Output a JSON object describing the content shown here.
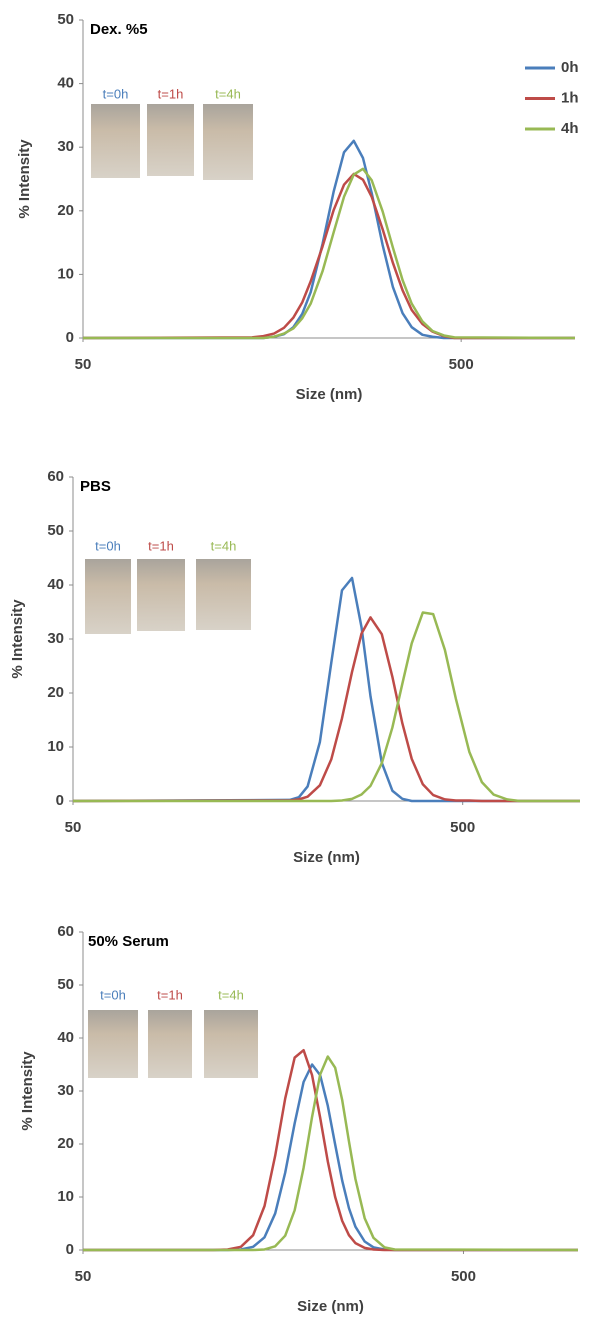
{
  "chart_data": [
    {
      "type": "line",
      "title": "Dex. %5",
      "xlabel": "Size (nm)",
      "ylabel": "% Intensity",
      "xscale": "log",
      "xlim": [
        50,
        1000
      ],
      "xticks": [
        50,
        500
      ],
      "ylim": [
        0,
        50
      ],
      "yticks": [
        0,
        10,
        20,
        30,
        40,
        50
      ],
      "legend": "upper right",
      "insets": [
        "t=0h",
        "t=1h",
        "t=4h"
      ],
      "x": [
        50,
        140,
        150,
        160,
        170,
        180,
        190,
        200,
        215,
        230,
        245,
        260,
        275,
        290,
        310,
        330,
        350,
        370,
        395,
        420,
        450,
        480,
        1000
      ],
      "series": [
        {
          "name": "0h",
          "color": "#4a7ebb",
          "values": [
            0,
            0,
            0,
            0.2,
            0.6,
            1.7,
            3.8,
            7.2,
            14.8,
            23,
            29.2,
            31,
            28.3,
            22.8,
            14.6,
            8,
            3.9,
            1.7,
            0.5,
            0.2,
            0,
            0,
            0
          ]
        },
        {
          "name": "1h",
          "color": "#be4b48",
          "values": [
            0,
            0.1,
            0.3,
            0.7,
            1.6,
            3.2,
            5.6,
            8.9,
            14.4,
            20.1,
            24.1,
            25.8,
            24.9,
            22.2,
            17.1,
            11.8,
            7.5,
            4.4,
            2.2,
            1,
            0.3,
            0,
            0
          ]
        },
        {
          "name": "4h",
          "color": "#98b954",
          "values": [
            0,
            0,
            0,
            0.2,
            0.7,
            1.5,
            3.1,
            5.4,
            10.5,
            16.6,
            22.2,
            25.7,
            26.6,
            24.8,
            19.9,
            14.2,
            9.1,
            5.4,
            2.6,
            1.1,
            0.4,
            0.1,
            0
          ]
        }
      ]
    },
    {
      "type": "line",
      "title": "PBS",
      "xlabel": "Size (nm)",
      "ylabel": "% Intensity",
      "xscale": "log",
      "xlim": [
        50,
        1000
      ],
      "xticks": [
        50,
        500
      ],
      "ylim": [
        0,
        60
      ],
      "yticks": [
        0,
        10,
        20,
        30,
        40,
        50,
        60
      ],
      "insets": [
        "t=0h",
        "t=1h",
        "t=4h"
      ],
      "x": [
        50,
        180,
        190,
        200,
        215,
        230,
        245,
        260,
        275,
        290,
        310,
        330,
        350,
        370,
        395,
        420,
        450,
        480,
        520,
        560,
        600,
        650,
        700,
        750,
        1000
      ],
      "series": [
        {
          "color": "#4a7ebb",
          "values": [
            0,
            0.2,
            0.7,
            2.7,
            10.9,
            25.6,
            39,
            41.3,
            32.2,
            19.4,
            7.1,
            1.9,
            0.4,
            0,
            0,
            0,
            0,
            0,
            0,
            0,
            0,
            0,
            0,
            0,
            0
          ]
        },
        {
          "color": "#be4b48",
          "values": [
            0,
            0.1,
            0.3,
            0.8,
            2.9,
            7.7,
            15.3,
            23.9,
            31,
            34,
            30.9,
            23,
            14.4,
            7.8,
            3.1,
            1.1,
            0.3,
            0.1,
            0.1,
            0,
            0,
            0,
            0,
            0,
            0
          ]
        },
        {
          "color": "#98b954",
          "values": [
            0,
            0,
            0,
            0,
            0,
            0,
            0.1,
            0.4,
            1.2,
            2.8,
            7,
            13.6,
            21.7,
            29.2,
            34.9,
            34.6,
            28,
            19,
            9.1,
            3.5,
            1.2,
            0.3,
            0,
            0,
            0
          ]
        }
      ]
    },
    {
      "type": "line",
      "title": "50% Serum",
      "xlabel": "Size (nm)",
      "ylabel": "% Intensity",
      "xscale": "log",
      "xlim": [
        50,
        1000
      ],
      "xticks": [
        50,
        500
      ],
      "ylim": [
        0,
        60
      ],
      "yticks": [
        0,
        10,
        20,
        30,
        40,
        50,
        60
      ],
      "insets": [
        "t=0h",
        "t=1h",
        "t=4h"
      ],
      "x": [
        50,
        110,
        120,
        130,
        140,
        150,
        160,
        170,
        180,
        190,
        200,
        210,
        220,
        230,
        240,
        250,
        260,
        275,
        290,
        310,
        330,
        1000
      ],
      "series": [
        {
          "color": "#4a7ebb",
          "values": [
            0,
            0,
            0,
            0.1,
            0.6,
            2.4,
            6.9,
            14.6,
            23.9,
            31.7,
            35,
            33,
            27.2,
            19.9,
            13.1,
            7.9,
            4.4,
            1.6,
            0.5,
            0.1,
            0,
            0
          ]
        },
        {
          "color": "#be4b48",
          "values": [
            0,
            0,
            0.1,
            0.6,
            2.8,
            8.3,
            17.8,
            28.6,
            36.3,
            37.7,
            33,
            25,
            16.7,
            10,
            5.5,
            2.8,
            1.3,
            0.4,
            0.1,
            0,
            0,
            0
          ]
        },
        {
          "color": "#98b954",
          "values": [
            0,
            0,
            0,
            0,
            0,
            0.1,
            0.7,
            2.7,
            7.5,
            15.5,
            25.1,
            33.1,
            36.5,
            34.4,
            28.3,
            20.5,
            13.4,
            6,
            2.3,
            0.5,
            0.1,
            0
          ]
        }
      ]
    }
  ]
}
